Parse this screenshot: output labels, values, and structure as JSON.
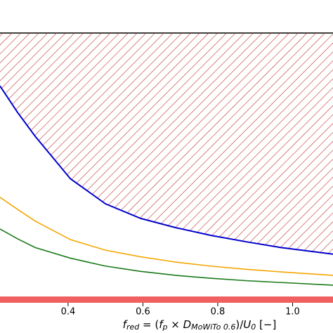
{
  "chart_data": {
    "type": "line",
    "x_label": [
      "f",
      "red",
      " = (",
      "f",
      "p",
      " × ",
      "D",
      "MoWiTo 0.6",
      ")/",
      "U",
      "0",
      " [−]"
    ],
    "x": [
      0.218,
      0.265,
      0.312,
      0.406,
      0.5,
      0.594,
      0.688,
      0.781,
      0.875,
      0.969,
      1.108
    ],
    "series": [
      {
        "color": "#0000cc",
        "hatch": "#c03030",
        "values": [
          0.8,
          0.7,
          0.61,
          0.45,
          0.355,
          0.3,
          0.265,
          0.236,
          0.212,
          0.19,
          0.165
        ]
      },
      {
        "color": "#f5a500",
        "values": [
          0.38,
          0.334,
          0.29,
          0.22,
          0.18,
          0.155,
          0.135,
          0.12,
          0.108,
          0.098,
          0.085
        ]
      },
      {
        "color": "#1a7a1a",
        "values": [
          0.26,
          0.223,
          0.19,
          0.15,
          0.12,
          0.1,
          0.085,
          0.074,
          0.065,
          0.058,
          0.048
        ]
      }
    ],
    "xlim": [
      0.218,
      1.108
    ],
    "ylim": [
      0,
      1
    ],
    "xticks": [
      0.4,
      0.6,
      0.8,
      {
        "value": 1.0,
        "label": "1.0"
      }
    ]
  }
}
